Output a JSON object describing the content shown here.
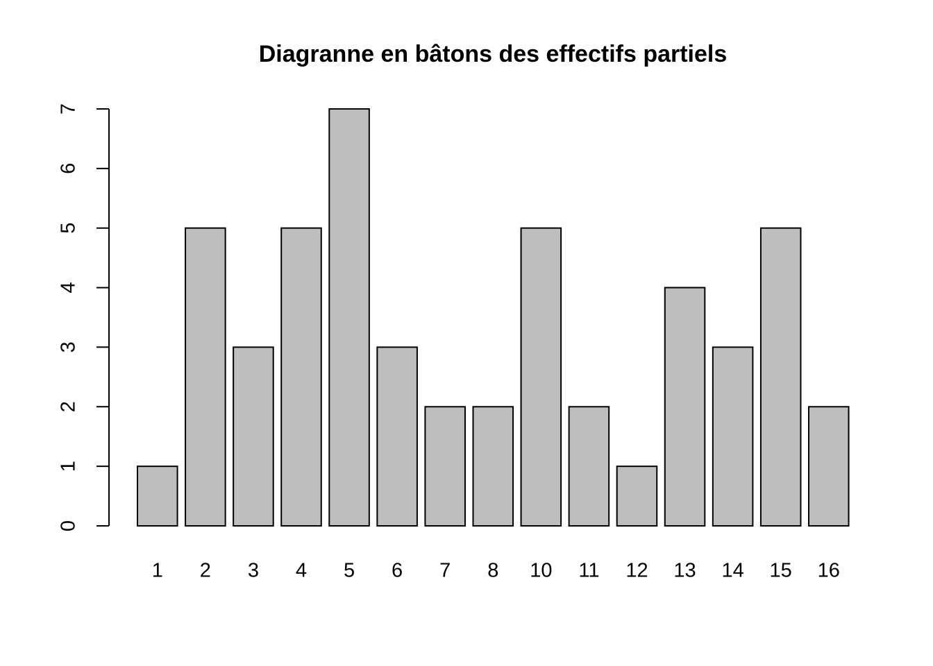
{
  "chart_data": {
    "type": "bar",
    "title": "Diagranne en bâtons des effectifs partiels",
    "categories": [
      "1",
      "2",
      "3",
      "4",
      "5",
      "6",
      "7",
      "8",
      "10",
      "11",
      "12",
      "13",
      "14",
      "15",
      "16"
    ],
    "values": [
      1,
      5,
      3,
      5,
      7,
      3,
      2,
      2,
      5,
      2,
      1,
      4,
      3,
      5,
      2
    ],
    "color": "#bebebe",
    "ylim": [
      0,
      7
    ],
    "yticks": [
      0,
      1,
      2,
      3,
      4,
      5,
      6,
      7
    ],
    "grid": false
  }
}
